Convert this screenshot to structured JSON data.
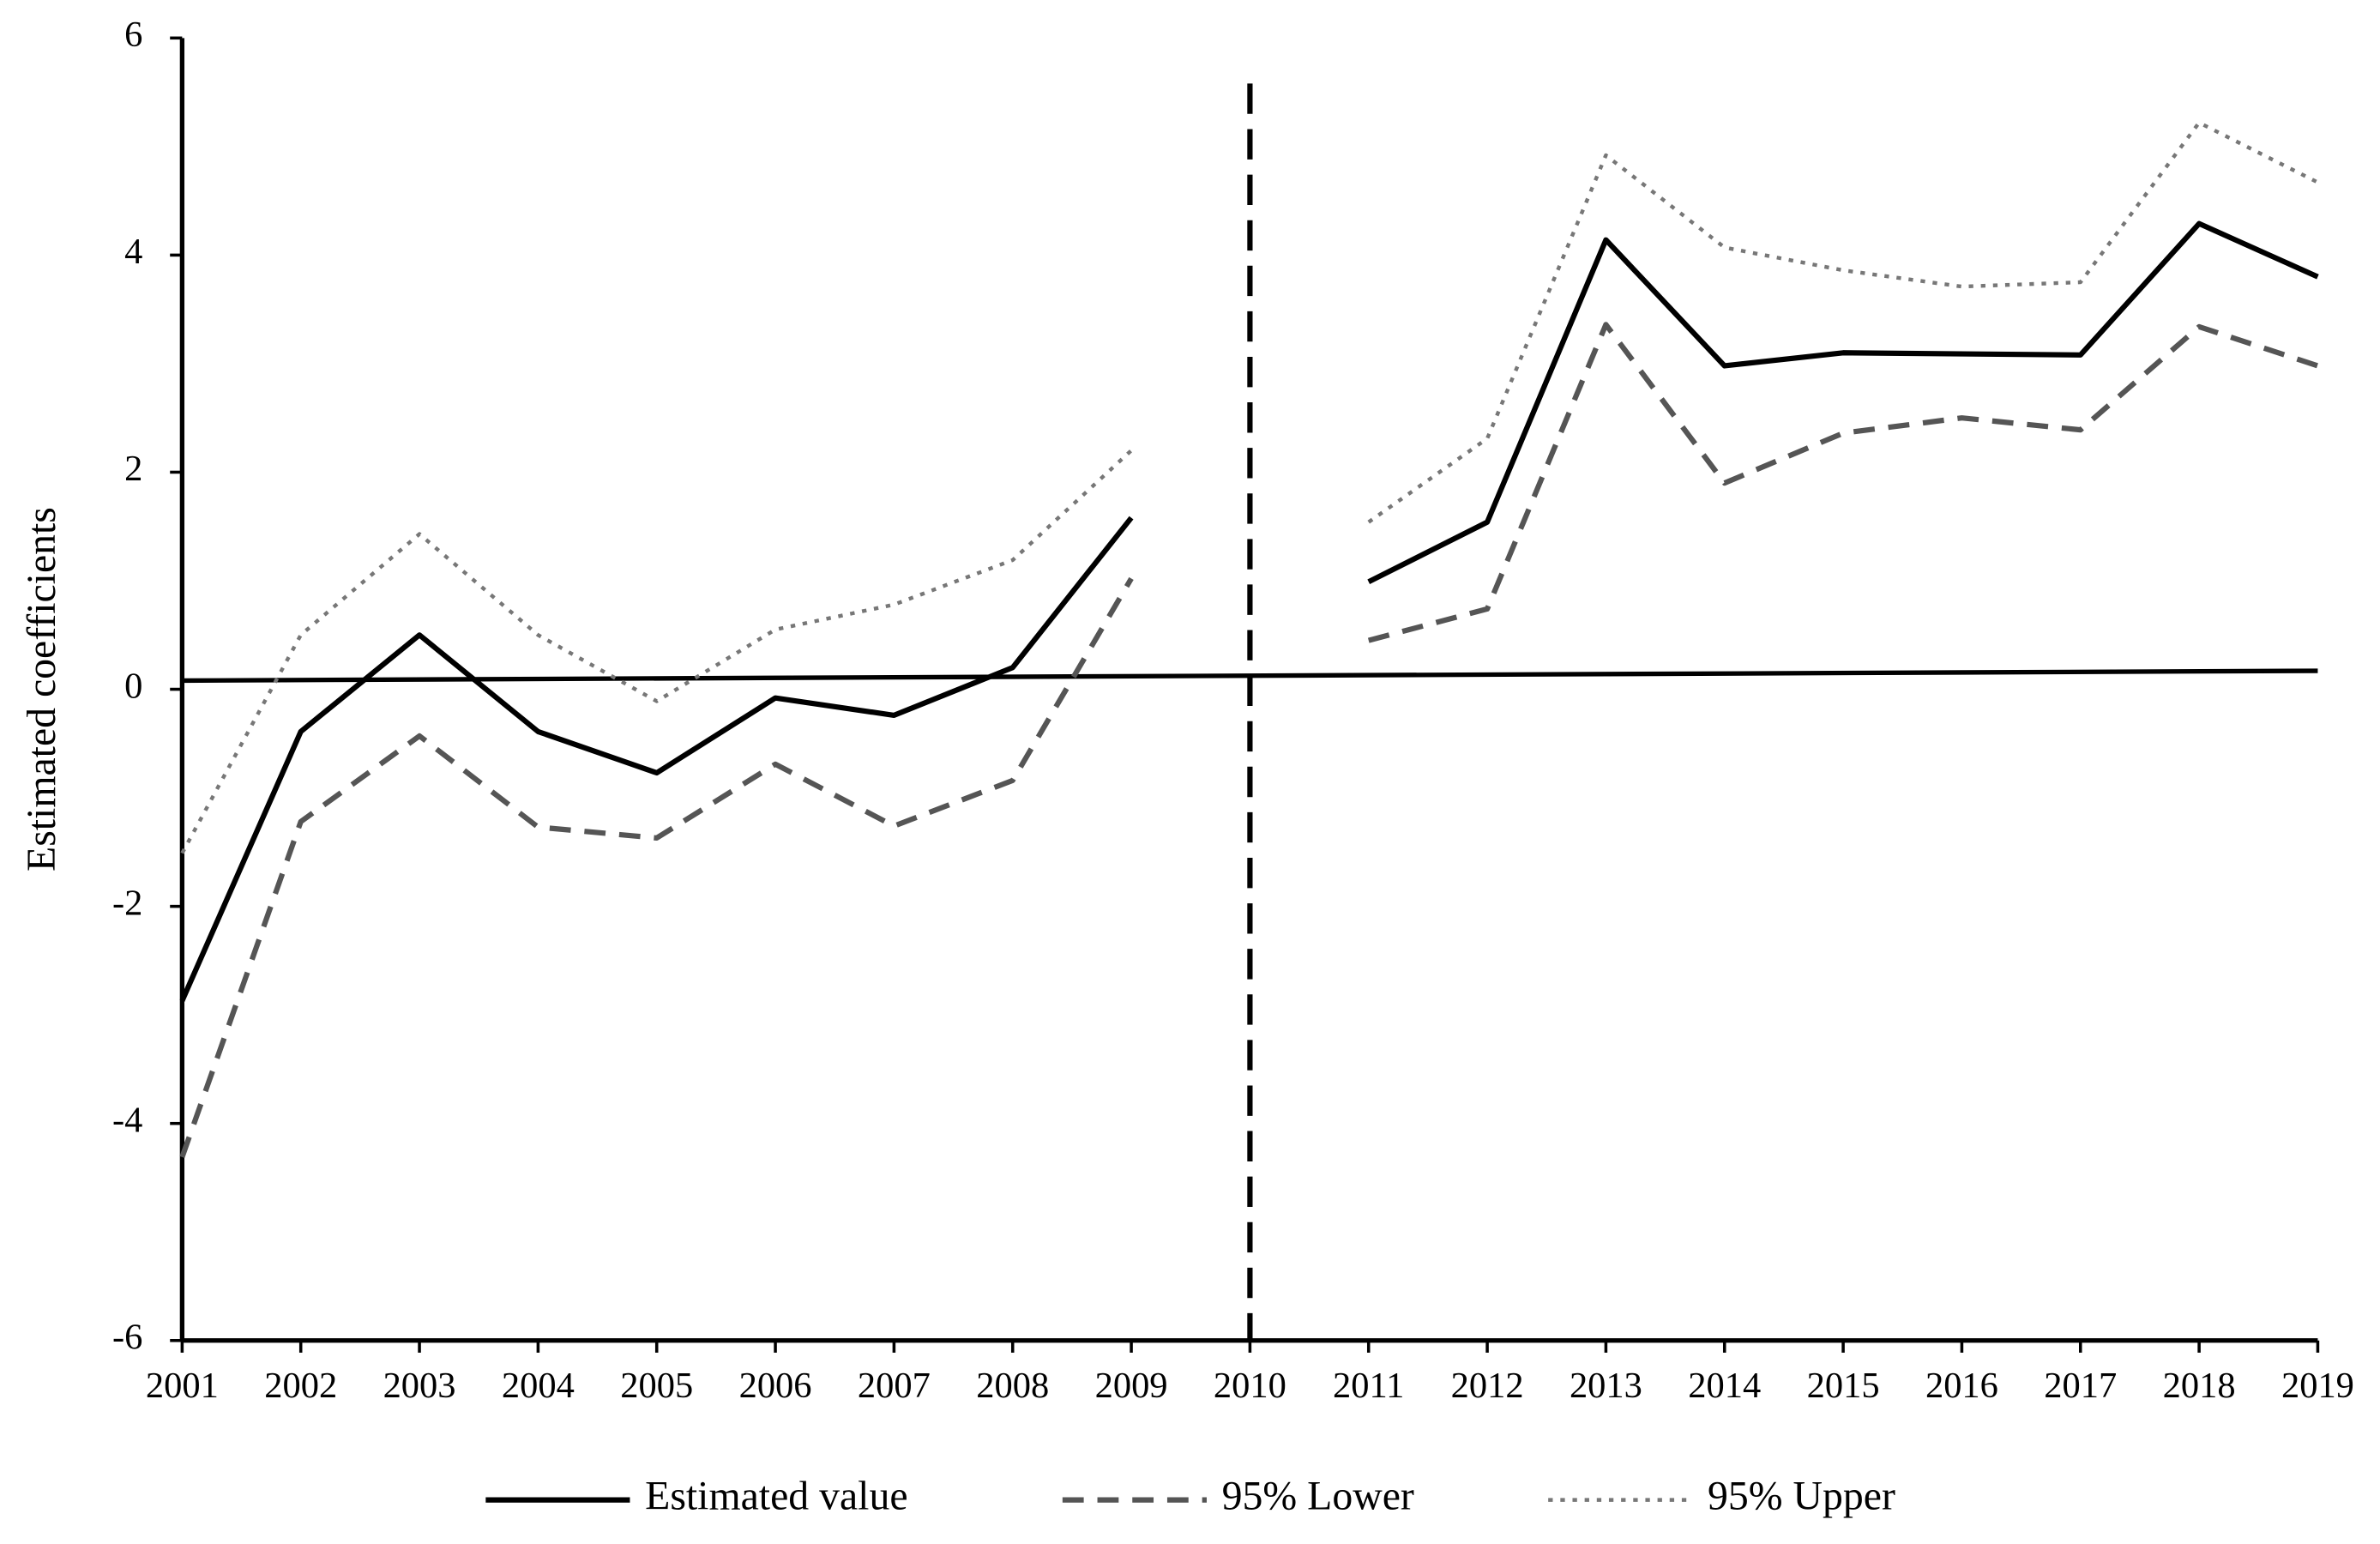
{
  "chart_data": {
    "type": "line",
    "y_label": "Estimated coefficients",
    "categories": [
      "2001",
      "2002",
      "2003",
      "2004",
      "2005",
      "2006",
      "2007",
      "2008",
      "2009",
      "2010",
      "2011",
      "2012",
      "2013",
      "2014",
      "2015",
      "2016",
      "2017",
      "2018",
      "2019"
    ],
    "series": [
      {
        "name": "Estimated value",
        "color": "#000000",
        "style": "solid",
        "values": [
          -2.87,
          -0.39,
          0.5,
          -0.39,
          -0.77,
          -0.08,
          -0.24,
          0.2,
          1.58,
          null,
          0.99,
          1.54,
          4.14,
          2.98,
          3.1,
          3.09,
          3.08,
          4.29,
          3.8
        ]
      },
      {
        "name": "95% Lower",
        "color": "#555555",
        "style": "dashed",
        "values": [
          -4.31,
          -1.22,
          -0.43,
          -1.27,
          -1.37,
          -0.69,
          -1.26,
          -0.84,
          1.02,
          null,
          0.45,
          0.74,
          3.36,
          1.9,
          2.36,
          2.5,
          2.39,
          3.34,
          2.98
        ]
      },
      {
        "name": "95% Upper",
        "color": "#777777",
        "style": "dotted",
        "values": [
          -1.51,
          0.5,
          1.43,
          0.5,
          -0.11,
          0.55,
          0.78,
          1.19,
          2.2,
          null,
          1.54,
          2.31,
          4.92,
          4.07,
          3.86,
          3.71,
          3.75,
          5.22,
          4.67
        ]
      }
    ],
    "reference_line": {
      "color": "#000000",
      "values": [
        0.08,
        0.17
      ]
    },
    "vertical_line_index": 9,
    "ylim": [
      -6,
      6
    ],
    "yticks": [
      -6,
      -4,
      -2,
      0,
      2,
      4,
      6
    ],
    "grid": false,
    "legend": "bottom"
  }
}
